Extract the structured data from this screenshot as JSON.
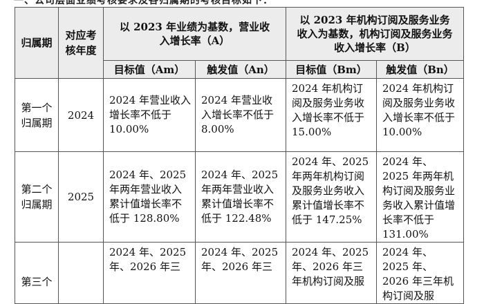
{
  "header": {
    "period": "归属期",
    "year_col": "对应考核年度",
    "group_a": "以 2023 年业绩为基数，营业收入增长率（A）",
    "group_b": "以 2023 年机构订阅及服务业务收入为基数，机构订阅及服务业务收入增长率（B）",
    "am": "目标值（Am）",
    "an": "触发值（An）",
    "bm": "目标值（Bm）",
    "bn": "触发值（Bn）"
  },
  "rows": [
    {
      "period": "第一个归属期",
      "year": "2024",
      "am": "2024 年营业收入增长率不低于 10.00%",
      "an": "2024 年营业收入增长率不低于 8.00%",
      "bm": "2024 年机构订阅及服务业务收入增长率不低于 15.00%",
      "bn": "2024 年机构订阅及服务业务收入增长率不低于 10.00%"
    },
    {
      "period": "第二个归属期",
      "year": "2025",
      "am": "2024 年、2025 年两年营业收入累计值增长率不低于 128.80%",
      "an": "2024 年、2025 年两年营业收入累计值增长率不低于 122.48%",
      "bm": "2024 年、2025 年两年机构订阅及服务业务收入累计值增长率不低于 147.25%",
      "bn": "2024 年、2025 年两年机构订阅及服务业务收入累计值增长率不低于 131.00%"
    },
    {
      "period": "第三个",
      "year": "",
      "am": "2024 年、2025 年、2026 年三",
      "an": "2024 年、2025 年、2026 年三",
      "bm": "2024 年、2025 年、2026 年三年机构订阅及服",
      "bn": "2024 年、2025 年、2026 年三年机构订阅及服"
    }
  ]
}
